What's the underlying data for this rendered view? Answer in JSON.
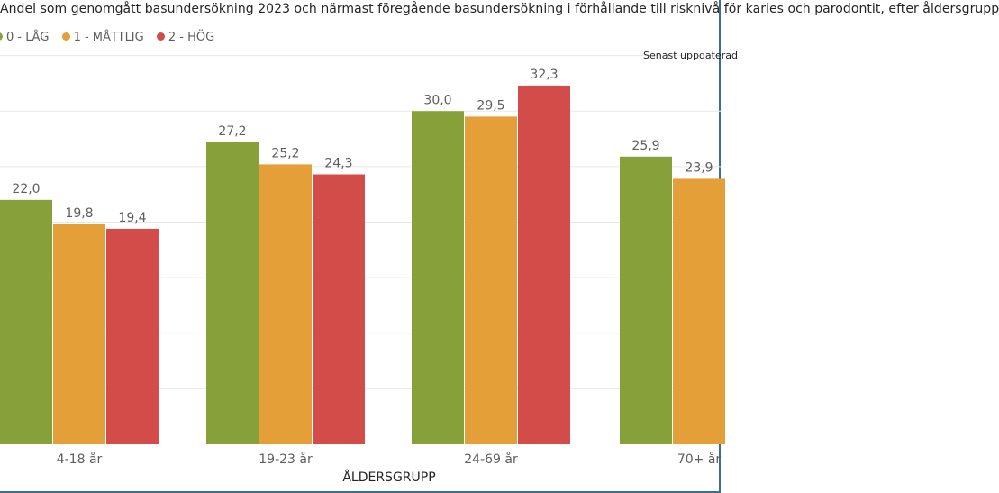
{
  "title": "Andel som genomgått basundersökning 2023 och närmast föregående basundersökning i förhållande till risknivå för karies och parodontit, efter åldersgrupp",
  "note": "Senast uppdaterad",
  "legend": [
    {
      "name": "0 - LÅG",
      "color": "#86a13a"
    },
    {
      "name": "1 - MÅTTLIG",
      "color": "#e49f38"
    },
    {
      "name": "2 - HÖG",
      "color": "#d24c49"
    }
  ],
  "chart_data": {
    "type": "bar",
    "xlabel": "ÅLDERSGRUPP",
    "ylabel": "",
    "categories": [
      "4-18 år",
      "19-23 år",
      "24-69 år",
      "70+ år"
    ],
    "series": [
      {
        "name": "0 - LÅG",
        "color": "#86a13a",
        "values": [
          22.0,
          27.2,
          30.0,
          25.9
        ],
        "labels": [
          "22,0",
          "27,2",
          "30,0",
          "25,9"
        ]
      },
      {
        "name": "1 - MÅTTLIG",
        "color": "#e49f38",
        "values": [
          19.8,
          25.2,
          29.5,
          23.9
        ],
        "labels": [
          "19,8",
          "25,2",
          "29,5",
          "23,9"
        ]
      },
      {
        "name": "2 - HÖG",
        "color": "#d24c49",
        "values": [
          19.4,
          24.3,
          32.3,
          null
        ],
        "labels": [
          "19,4",
          "24,3",
          "32,3",
          ""
        ]
      }
    ],
    "ylim": [
      0,
      40
    ],
    "grid": true,
    "legend_position": "top-left"
  }
}
